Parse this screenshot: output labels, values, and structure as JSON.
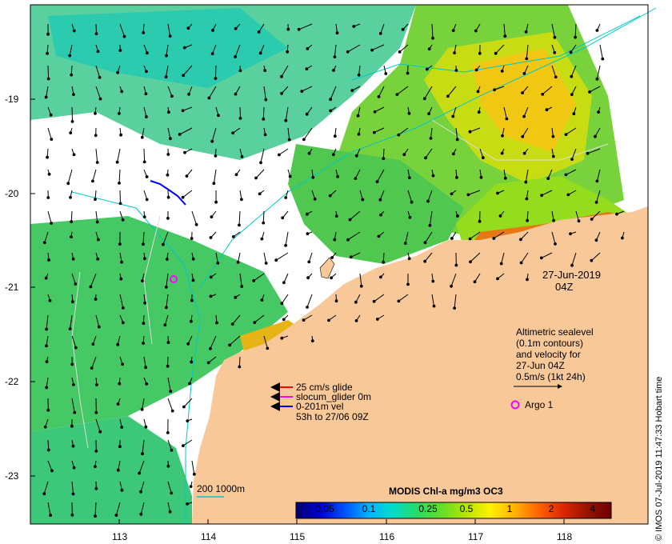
{
  "map": {
    "lon_ticks": [
      "113",
      "114",
      "115",
      "116",
      "117",
      "118"
    ],
    "lat_ticks": [
      "-19",
      "-20",
      "-21",
      "-22",
      "-23"
    ],
    "timestamp_date": "27-Jun-2019",
    "timestamp_hour": "04Z"
  },
  "legend_glider": {
    "items": [
      {
        "label": "25 cm/s glide",
        "color": "#ff0000"
      },
      {
        "label": "slocum_glider 0m",
        "color": "#ff00ff"
      },
      {
        "label": "0-201m vel",
        "color": "#0000ff"
      }
    ],
    "period": "53h to 27/06 09Z"
  },
  "legend_altimetry": {
    "lines": [
      "Altimetric sealevel",
      "(0.1m contours)",
      "and velocity for",
      "27-Jun 04Z",
      "0.5m/s (1kt 24h)"
    ]
  },
  "argo": {
    "label": "Argo 1",
    "color": "#ff00ff"
  },
  "depth_legend": {
    "label": "200  1000m",
    "color": "#00c8c8"
  },
  "colorbar": {
    "title": "MODIS Chl-a mg/m3 OC3",
    "tick_labels": [
      "0.05",
      "0.1",
      "0.25",
      "0.5",
      "1",
      "2",
      "4"
    ],
    "stops": [
      "#00006e",
      "#0000d2",
      "#0050ff",
      "#00b4ff",
      "#00dcc8",
      "#28dc64",
      "#64dc28",
      "#b4e600",
      "#fff000",
      "#ffb400",
      "#ff6400",
      "#dc2800",
      "#961400",
      "#6e0000"
    ]
  },
  "credit": "© IMOS 07-Jul-2019 11:47:33 Hobart time",
  "colors": {
    "land": "#f9c899",
    "frame": "#000000"
  }
}
